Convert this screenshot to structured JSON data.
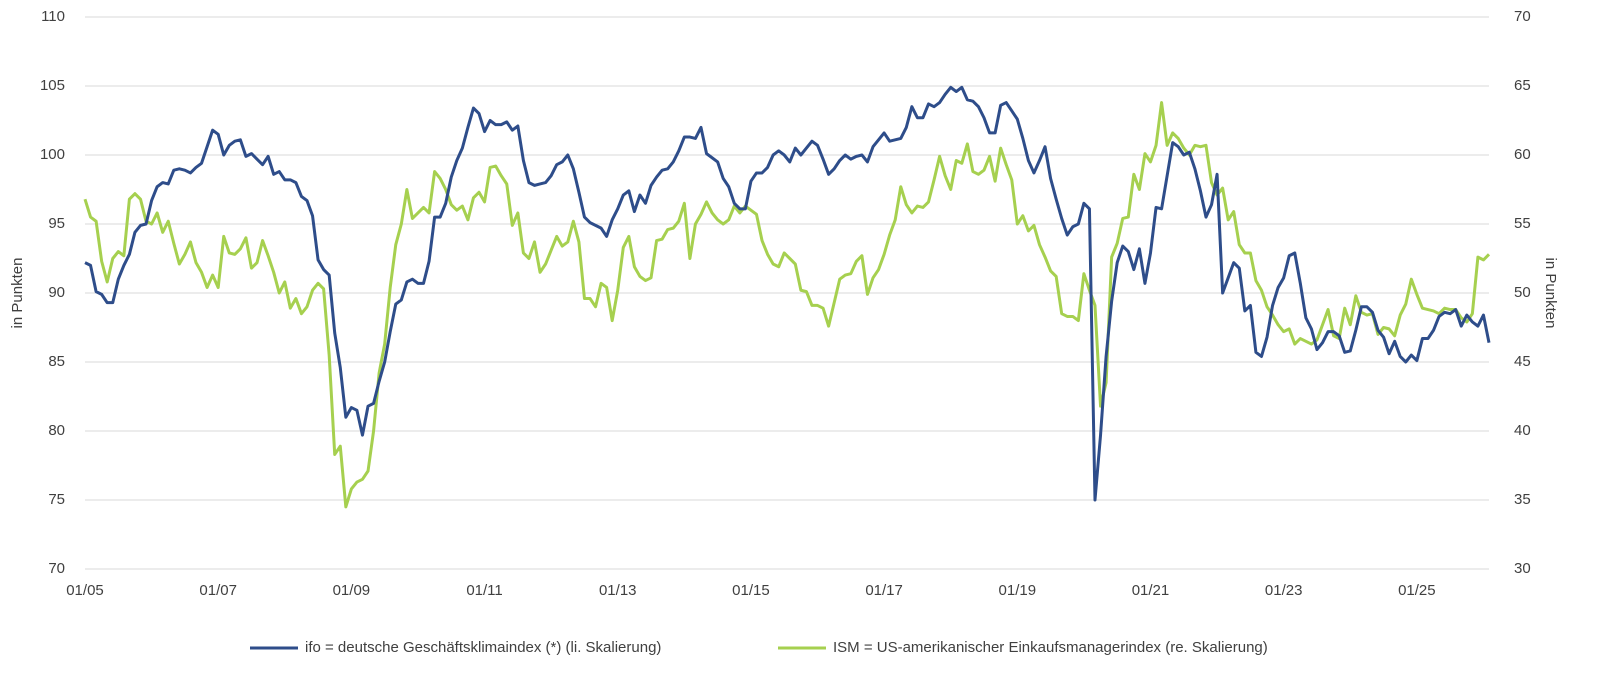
{
  "chart_data": {
    "type": "line",
    "y_label": "in Punkten",
    "y2_label": "in Punkten",
    "categories": [
      "01/05",
      null,
      null,
      null,
      null,
      null,
      null,
      null,
      null,
      null,
      null,
      null,
      null,
      null,
      null,
      null,
      null,
      null,
      null,
      null,
      null,
      null,
      null,
      null,
      "01/07",
      null,
      null,
      null,
      null,
      null,
      null,
      null,
      null,
      null,
      null,
      null,
      null,
      null,
      null,
      null,
      null,
      null,
      null,
      null,
      null,
      null,
      null,
      null,
      "01/09",
      null,
      null,
      null,
      null,
      null,
      null,
      null,
      null,
      null,
      null,
      null,
      null,
      null,
      null,
      null,
      null,
      null,
      null,
      null,
      null,
      null,
      null,
      null,
      "01/11",
      null,
      null,
      null,
      null,
      null,
      null,
      null,
      null,
      null,
      null,
      null,
      null,
      null,
      null,
      null,
      null,
      null,
      null,
      null,
      null,
      null,
      null,
      null,
      "01/13",
      null,
      null,
      null,
      null,
      null,
      null,
      null,
      null,
      null,
      null,
      null,
      null,
      null,
      null,
      null,
      null,
      null,
      null,
      null,
      null,
      null,
      null,
      null,
      "01/15",
      null,
      null,
      null,
      null,
      null,
      null,
      null,
      null,
      null,
      null,
      null,
      null,
      null,
      null,
      null,
      null,
      null,
      null,
      null,
      null,
      null,
      null,
      null,
      "01/17",
      null,
      null,
      null,
      null,
      null,
      null,
      null,
      null,
      null,
      null,
      null,
      null,
      null,
      null,
      null,
      null,
      null,
      null,
      null,
      null,
      null,
      null,
      null,
      "01/19",
      null,
      null,
      null,
      null,
      null,
      null,
      null,
      null,
      null,
      null,
      null,
      null,
      null,
      null,
      null,
      null,
      null,
      null,
      null,
      null,
      null,
      null,
      null,
      "01/21",
      null,
      null,
      null,
      null,
      null,
      null,
      null,
      null,
      null,
      null,
      null,
      null,
      null,
      null,
      null,
      null,
      null,
      null,
      null,
      null,
      null,
      null,
      null,
      "01/23",
      null,
      null,
      null,
      null,
      null,
      null,
      null,
      null,
      null,
      null,
      null,
      null,
      null,
      null,
      null,
      null,
      null,
      null,
      null,
      null,
      null,
      null,
      null,
      "01/25",
      null,
      null,
      null,
      null,
      null,
      null,
      null,
      null,
      null,
      null,
      null,
      null,
      null
    ],
    "series": [
      {
        "name": "ifo = deutsche Geschäftsklimaindex (*) (li. Skalierung)",
        "color": "#2e4d8a",
        "axis": "y",
        "values": [
          92.2,
          92.0,
          90.1,
          89.9,
          89.3,
          89.3,
          91.0,
          92.0,
          92.8,
          94.4,
          94.9,
          95.0,
          96.7,
          97.7,
          98.0,
          97.9,
          98.9,
          99.0,
          98.9,
          98.7,
          99.1,
          99.4,
          100.6,
          101.8,
          101.5,
          100.0,
          100.7,
          101.0,
          101.1,
          99.9,
          100.1,
          99.7,
          99.3,
          99.9,
          98.6,
          98.8,
          98.2,
          98.2,
          98.0,
          97.0,
          96.7,
          95.6,
          92.4,
          91.7,
          91.3,
          87.1,
          84.6,
          81.0,
          81.7,
          81.5,
          79.7,
          81.8,
          82.0,
          83.6,
          85.0,
          87.2,
          89.2,
          89.5,
          90.8,
          91.0,
          90.7,
          90.7,
          92.3,
          95.5,
          95.5,
          96.5,
          98.4,
          99.6,
          100.5,
          102.0,
          103.4,
          103.0,
          101.7,
          102.5,
          102.2,
          102.2,
          102.4,
          101.8,
          102.1,
          99.6,
          98.0,
          97.8,
          97.9,
          98.0,
          98.5,
          99.3,
          99.5,
          100.0,
          99.0,
          97.3,
          95.5,
          95.1,
          94.9,
          94.7,
          94.1,
          95.3,
          96.1,
          97.1,
          97.4,
          95.9,
          97.1,
          96.5,
          97.8,
          98.4,
          98.9,
          99.0,
          99.5,
          100.3,
          101.3,
          101.3,
          101.2,
          102.0,
          100.1,
          99.8,
          99.5,
          98.3,
          97.7,
          96.5,
          96.1,
          96.1,
          98.1,
          98.7,
          98.7,
          99.1,
          100.0,
          100.3,
          100.0,
          99.5,
          100.5,
          100.0,
          100.5,
          101.0,
          100.7,
          99.7,
          98.6,
          99.0,
          99.6,
          100.0,
          99.7,
          99.9,
          100.0,
          99.5,
          100.6,
          101.1,
          101.6,
          101.0,
          101.1,
          101.2,
          102.0,
          103.5,
          102.7,
          102.7,
          103.7,
          103.5,
          103.8,
          104.4,
          104.9,
          104.6,
          104.9,
          104.0,
          103.9,
          103.5,
          102.7,
          101.6,
          101.6,
          103.6,
          103.8,
          103.2,
          102.6,
          101.2,
          99.6,
          98.7,
          99.6,
          100.6,
          98.3,
          96.8,
          95.4,
          94.2,
          94.8,
          95.0,
          96.5,
          96.1,
          75.0,
          79.7,
          85.4,
          89.4,
          92.2,
          93.4,
          93.0,
          91.7,
          93.2,
          90.7,
          92.9,
          96.2,
          96.1,
          98.5,
          100.9,
          100.6,
          100.0,
          100.2,
          99.0,
          97.4,
          95.5,
          96.4,
          98.6,
          90.0,
          91.1,
          92.2,
          91.8,
          88.7,
          89.1,
          85.7,
          85.4,
          86.8,
          89.1,
          90.4,
          91.1,
          92.7,
          92.9,
          90.7,
          88.2,
          87.4,
          85.9,
          86.4,
          87.2,
          87.2,
          86.9,
          85.7,
          85.8,
          87.3,
          89.0,
          89.0,
          88.6,
          87.3,
          86.8,
          85.6,
          86.5,
          85.4,
          85.0,
          85.5,
          85.1,
          86.7,
          86.7,
          87.3,
          88.3,
          88.6,
          88.5,
          88.8,
          87.6,
          88.4,
          87.9,
          87.6,
          88.4,
          86.4
        ]
      },
      {
        "name": "ISM = US-amerikanischer Einkaufsmanagerindex (re. Skalierung)",
        "color": "#a6d04f",
        "axis": "y2",
        "values": [
          56.8,
          55.5,
          55.2,
          52.3,
          50.8,
          52.5,
          53.0,
          52.7,
          56.8,
          57.2,
          56.8,
          55.2,
          55.0,
          55.8,
          54.4,
          55.2,
          53.6,
          52.1,
          52.8,
          53.7,
          52.2,
          51.5,
          50.4,
          51.3,
          50.4,
          54.1,
          52.9,
          52.8,
          53.2,
          54.0,
          51.8,
          52.2,
          53.8,
          52.7,
          51.5,
          50.0,
          50.8,
          48.9,
          49.6,
          48.5,
          49.0,
          50.2,
          50.7,
          50.3,
          45.5,
          38.3,
          38.9,
          34.5,
          35.8,
          36.3,
          36.5,
          37.1,
          40.0,
          44.2,
          46.3,
          50.4,
          53.5,
          55.0,
          57.5,
          55.4,
          55.8,
          56.2,
          55.8,
          58.8,
          58.3,
          57.5,
          56.4,
          56.0,
          56.3,
          55.3,
          56.9,
          57.3,
          56.6,
          59.1,
          59.2,
          58.5,
          57.9,
          54.9,
          55.8,
          52.9,
          52.5,
          53.7,
          51.5,
          52.1,
          53.1,
          54.1,
          53.4,
          53.7,
          55.2,
          53.7,
          49.6,
          49.6,
          49.0,
          50.7,
          50.4,
          48.0,
          50.2,
          53.3,
          54.1,
          51.9,
          51.2,
          50.9,
          51.1,
          53.8,
          53.9,
          54.6,
          54.7,
          55.2,
          56.5,
          52.5,
          55.0,
          55.7,
          56.6,
          55.8,
          55.3,
          55.0,
          55.3,
          56.3,
          55.8,
          56.3,
          56.0,
          55.7,
          53.8,
          52.8,
          52.1,
          51.9,
          52.9,
          52.5,
          52.1,
          50.2,
          50.1,
          49.1,
          49.1,
          48.9,
          47.6,
          49.3,
          51.0,
          51.3,
          51.4,
          52.3,
          52.7,
          49.9,
          51.1,
          51.7,
          52.8,
          54.2,
          55.3,
          57.7,
          56.4,
          55.8,
          56.3,
          56.2,
          56.6,
          58.2,
          59.9,
          58.5,
          57.5,
          59.6,
          59.4,
          60.8,
          58.8,
          58.6,
          58.9,
          59.9,
          58.1,
          60.5,
          59.3,
          58.2,
          55.0,
          55.6,
          54.5,
          54.9,
          53.5,
          52.6,
          51.6,
          51.2,
          48.5,
          48.3,
          48.3,
          48.0,
          51.4,
          50.2,
          49.1,
          41.8,
          43.5,
          52.6,
          53.6,
          55.4,
          55.5,
          58.6,
          57.5,
          60.1,
          59.5,
          60.7,
          63.8,
          60.7,
          61.6,
          61.2,
          60.5,
          60.0,
          60.7,
          60.6,
          60.7,
          58.0,
          57.1,
          57.6,
          55.3,
          55.9,
          53.5,
          52.9,
          52.9,
          50.9,
          50.2,
          49.0,
          48.4,
          47.7,
          47.2,
          47.4,
          46.3,
          46.7,
          46.5,
          46.3,
          46.6,
          47.7,
          48.8,
          46.9,
          46.7,
          48.9,
          47.7,
          49.8,
          48.6,
          48.4,
          48.5,
          47.0,
          47.5,
          47.4,
          46.9,
          48.4,
          49.2,
          51.0,
          49.9,
          48.9,
          48.8,
          48.7,
          48.5,
          48.9,
          48.8,
          48.8,
          48.2,
          47.9,
          48.5,
          52.6,
          52.4,
          52.8
        ]
      }
    ],
    "ylim": [
      70,
      110
    ],
    "yticks": [
      70,
      75,
      80,
      85,
      90,
      95,
      100,
      105,
      110
    ],
    "y2lim": [
      30,
      70
    ],
    "y2ticks": [
      30,
      35,
      40,
      45,
      50,
      55,
      60,
      65,
      70
    ],
    "grid": true,
    "legend": "bottom"
  }
}
